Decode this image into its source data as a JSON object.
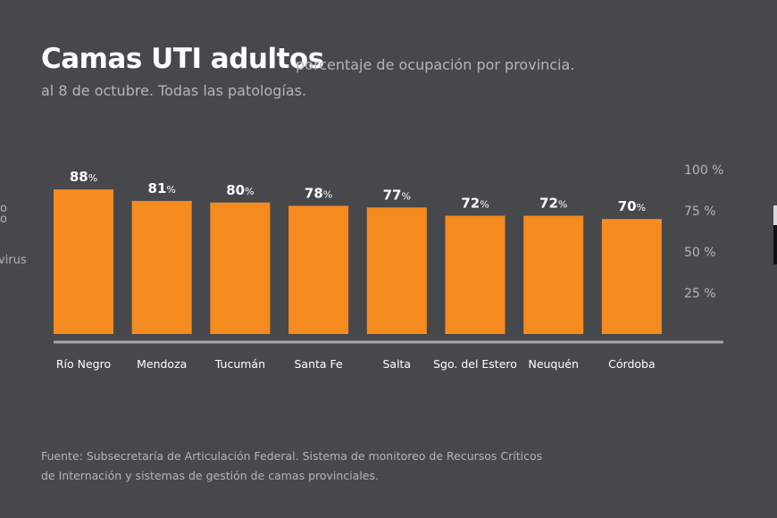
{
  "header": {
    "title": "Camas UTI adultos",
    "subtitle_inline": "porcentaje de ocupación por provincia.",
    "subtitle_line2": "al 8 de octubre. Todas las patologías."
  },
  "left_fragments": [
    "o",
    "o",
    "virus"
  ],
  "footer": {
    "source_line1": "Fuente: Subsecretaría de Articulación Federal. Sistema de monitoreo de Recursos Críticos",
    "source_line2": "de Internación  y sistemas de gestión de camas provinciales."
  },
  "colors": {
    "background": "#47484c",
    "bar": "#f68b1f",
    "axis_line": "#a8a6aa",
    "text_light": "#b7b4b8",
    "text_white": "#ffffff"
  },
  "chart_data": {
    "type": "bar",
    "title": "Camas UTI adultos",
    "subtitle": "porcentaje de ocupación por provincia. al 8 de octubre. Todas las patologías.",
    "categories": [
      "Río Negro",
      "Mendoza",
      "Tucumán",
      "Santa Fe",
      "Salta",
      "Sgo. del Estero",
      "Neuquén",
      "Córdoba"
    ],
    "values": [
      88,
      81,
      80,
      78,
      77,
      72,
      72,
      70
    ],
    "value_suffix": "%",
    "xlabel": "",
    "ylabel": "",
    "ylim": [
      0,
      100
    ],
    "yticks": [
      25,
      50,
      75,
      100
    ],
    "ytick_labels": [
      "25 %",
      "50 %",
      "75 %",
      "100 %"
    ],
    "yaxis_position": "right",
    "grid": false,
    "legend": "none"
  }
}
